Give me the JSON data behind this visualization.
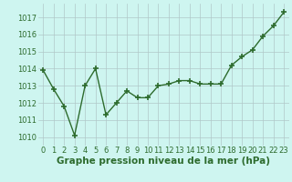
{
  "x": [
    0,
    1,
    2,
    3,
    4,
    5,
    6,
    7,
    8,
    9,
    10,
    11,
    12,
    13,
    14,
    15,
    16,
    17,
    18,
    19,
    20,
    21,
    22,
    23
  ],
  "y": [
    1013.9,
    1012.8,
    1011.8,
    1010.1,
    1013.0,
    1014.0,
    1011.3,
    1012.0,
    1012.7,
    1012.3,
    1012.3,
    1013.0,
    1013.1,
    1013.3,
    1013.3,
    1013.1,
    1013.1,
    1013.1,
    1014.2,
    1014.7,
    1015.1,
    1015.9,
    1016.5,
    1017.3
  ],
  "line_color": "#2d6b2d",
  "marker": "+",
  "marker_size": 4,
  "linewidth": 1.0,
  "xlabel": "Graphe pression niveau de la mer (hPa)",
  "xlabel_fontsize": 7.5,
  "xlabel_color": "#2d6b2d",
  "xlabel_bold": true,
  "ylim": [
    1009.5,
    1017.8
  ],
  "xlim": [
    -0.5,
    23.5
  ],
  "yticks": [
    1010,
    1011,
    1012,
    1013,
    1014,
    1015,
    1016,
    1017
  ],
  "xticks": [
    0,
    1,
    2,
    3,
    4,
    5,
    6,
    7,
    8,
    9,
    10,
    11,
    12,
    13,
    14,
    15,
    16,
    17,
    18,
    19,
    20,
    21,
    22,
    23
  ],
  "bg_color": "#cef5f0",
  "grid_color": "#b0c8c8",
  "tick_color": "#2d6b2d",
  "tick_fontsize": 6.0,
  "spine_color": "#2d6b2d"
}
